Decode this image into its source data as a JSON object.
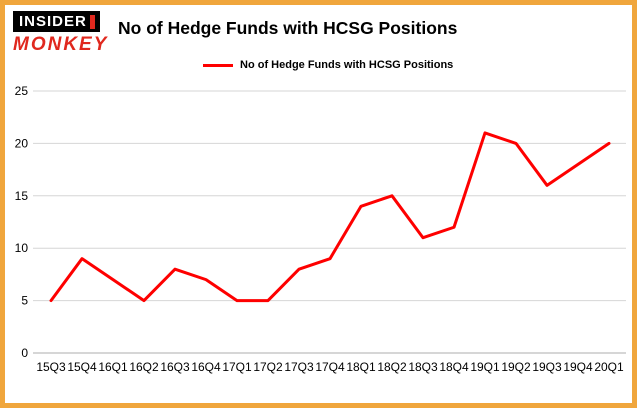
{
  "brand": {
    "line1": "INSIDER",
    "line2": "MONKEY"
  },
  "header": {
    "title": "No of Hedge Funds with HCSG Positions"
  },
  "legend": {
    "label": "No of Hedge Funds with HCSG Positions"
  },
  "colors": {
    "frame_border": "#f0a63c",
    "line": "#fe0000",
    "grid": "#d6d6d6",
    "axis": "#adadad",
    "logo_red": "#e0281e"
  },
  "chart_data": {
    "type": "line",
    "title": "No of Hedge Funds with HCSG Positions",
    "categories": [
      "15Q3",
      "15Q4",
      "16Q1",
      "16Q2",
      "16Q3",
      "16Q4",
      "17Q1",
      "17Q2",
      "17Q3",
      "17Q4",
      "18Q1",
      "18Q2",
      "18Q3",
      "18Q4",
      "19Q1",
      "19Q2",
      "19Q3",
      "19Q4",
      "20Q1"
    ],
    "values": [
      5,
      9,
      7,
      5,
      8,
      7,
      5,
      5,
      8,
      9,
      14,
      15,
      11,
      12,
      21,
      20,
      16,
      18,
      20
    ],
    "xlabel": "",
    "ylabel": "",
    "yticks": [
      0,
      5,
      10,
      15,
      20,
      25
    ],
    "ylim": [
      0,
      25
    ],
    "grid": true,
    "legend_position": "top-center",
    "line_color": "#fe0000"
  }
}
